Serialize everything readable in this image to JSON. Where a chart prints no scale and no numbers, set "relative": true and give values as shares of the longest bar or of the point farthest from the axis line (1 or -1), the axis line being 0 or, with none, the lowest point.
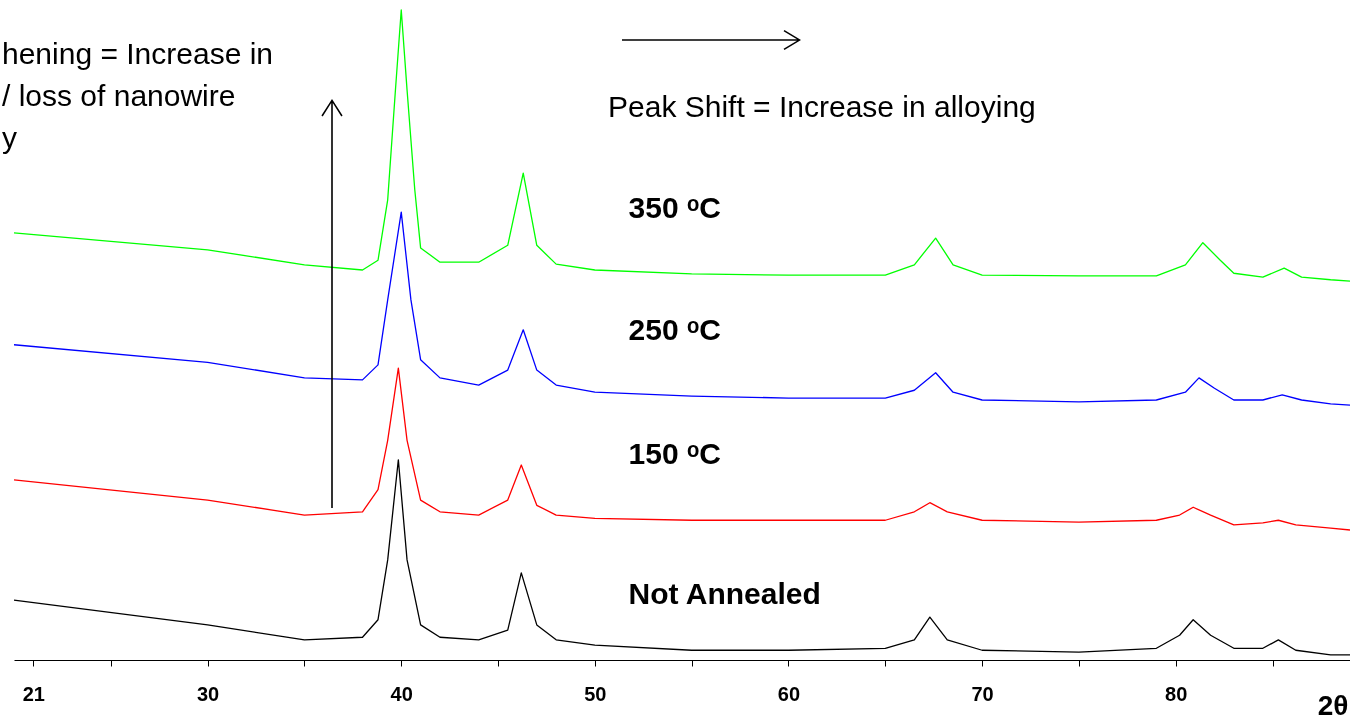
{
  "chart_data": {
    "type": "line",
    "relative": true,
    "xlabel": "2θ",
    "xlim": [
      20,
      89
    ],
    "xticks": [
      {
        "value": 21,
        "label": "21"
      },
      {
        "value": 25,
        "label": null
      },
      30,
      {
        "value": 35,
        "label": null
      },
      40,
      {
        "value": 45,
        "label": null
      },
      50,
      {
        "value": 55,
        "label": null
      },
      60,
      {
        "value": 65,
        "label": null
      },
      70,
      {
        "value": 75,
        "label": null
      },
      80,
      {
        "value": 85,
        "label": null
      }
    ],
    "grid": false,
    "annotations": [
      "hening = Increase in\n/ loss of nanowire\ny",
      "Peak Shift = Increase in alloying"
    ],
    "series": [
      {
        "name": "Not Annealed",
        "color": "#000000",
        "x": [
          20,
          30,
          35,
          38,
          38.8,
          39.3,
          39.85,
          40.3,
          41,
          42,
          44,
          45.5,
          46.2,
          47,
          48,
          50,
          55,
          60,
          65,
          66.5,
          67.3,
          68.2,
          70,
          75,
          79,
          80.2,
          80.9,
          81.8,
          83,
          84.5,
          85.3,
          86.2,
          88,
          89
        ],
        "values": [
          0.092,
          0.054,
          0.031,
          0.035,
          0.062,
          0.154,
          0.308,
          0.154,
          0.054,
          0.035,
          0.031,
          0.046,
          0.134,
          0.054,
          0.031,
          0.023,
          0.015,
          0.015,
          0.018,
          0.031,
          0.066,
          0.031,
          0.015,
          0.012,
          0.018,
          0.038,
          0.062,
          0.038,
          0.018,
          0.018,
          0.031,
          0.015,
          0.008,
          0.008
        ]
      },
      {
        "name": "150 ᵒC",
        "color": "#ff0000",
        "x": [
          20,
          30,
          35,
          38,
          38.8,
          39.3,
          39.85,
          40.3,
          41,
          42,
          44,
          45.5,
          46.2,
          47,
          48,
          50,
          55,
          60,
          65,
          66.5,
          67.3,
          68.2,
          70,
          75,
          79,
          80.2,
          80.9,
          81.8,
          83,
          84.5,
          85.3,
          86.2,
          88,
          89
        ],
        "values": [
          0.277,
          0.246,
          0.223,
          0.228,
          0.262,
          0.338,
          0.449,
          0.338,
          0.246,
          0.228,
          0.223,
          0.246,
          0.3,
          0.238,
          0.223,
          0.218,
          0.215,
          0.215,
          0.215,
          0.228,
          0.242,
          0.228,
          0.215,
          0.212,
          0.215,
          0.223,
          0.235,
          0.223,
          0.208,
          0.211,
          0.215,
          0.208,
          0.203,
          0.2
        ]
      },
      {
        "name": "250 ᵒC",
        "color": "#0000ff",
        "x": [
          20,
          30,
          35,
          38,
          38.8,
          39.3,
          40,
          40.5,
          41,
          42,
          44,
          45.5,
          46.3,
          47,
          48,
          50,
          55,
          60,
          65,
          66.5,
          67.6,
          68.5,
          70,
          75,
          79,
          80.5,
          81.2,
          82,
          83,
          84.5,
          85.5,
          86.5,
          88,
          89
        ],
        "values": [
          0.485,
          0.458,
          0.434,
          0.431,
          0.454,
          0.554,
          0.689,
          0.554,
          0.462,
          0.434,
          0.423,
          0.446,
          0.508,
          0.446,
          0.423,
          0.412,
          0.406,
          0.403,
          0.403,
          0.415,
          0.442,
          0.412,
          0.4,
          0.397,
          0.4,
          0.412,
          0.434,
          0.418,
          0.4,
          0.4,
          0.408,
          0.4,
          0.394,
          0.392
        ]
      },
      {
        "name": "350 ᵒC",
        "color": "#00ff00",
        "x": [
          20,
          30,
          35,
          38,
          38.8,
          39.3,
          39.7,
          40,
          40.3,
          40.7,
          41,
          42,
          44,
          45.5,
          46.3,
          47,
          48,
          50,
          55,
          60,
          65,
          66.5,
          67.6,
          68.5,
          70,
          75,
          79,
          80.5,
          81.4,
          82.3,
          83,
          84.5,
          85.6,
          86.5,
          88,
          89
        ],
        "values": [
          0.657,
          0.631,
          0.608,
          0.6,
          0.615,
          0.708,
          0.877,
          1,
          0.877,
          0.723,
          0.634,
          0.612,
          0.612,
          0.638,
          0.749,
          0.638,
          0.609,
          0.6,
          0.594,
          0.592,
          0.592,
          0.608,
          0.649,
          0.608,
          0.592,
          0.591,
          0.591,
          0.608,
          0.642,
          0.615,
          0.595,
          0.589,
          0.603,
          0.589,
          0.585,
          0.583
        ]
      }
    ]
  }
}
